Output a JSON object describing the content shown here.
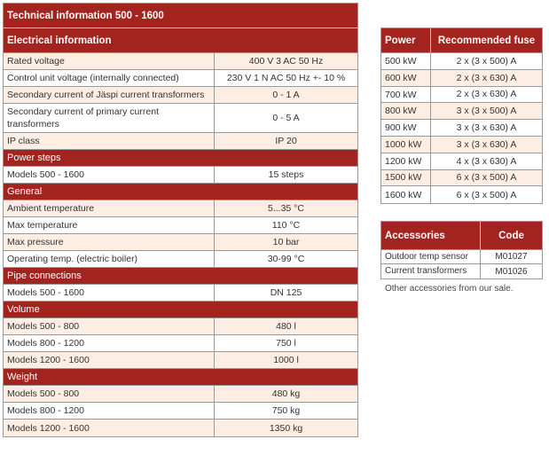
{
  "specs": {
    "title": "Technical information 500 - 1600",
    "sections": [
      {
        "heading": "Electrical information",
        "rows": [
          [
            "Rated voltage",
            "400 V 3 AC 50 Hz"
          ],
          [
            "Control unit voltage (internally connected)",
            "230 V 1 N AC 50 Hz +- 10 %"
          ],
          [
            "Secondary current of Jäspi current transformers",
            "0 - 1 A"
          ],
          [
            "Secondary current of primary current transformers",
            "0 - 5 A"
          ],
          [
            "IP class",
            "IP 20"
          ]
        ]
      },
      {
        "heading": "Power steps",
        "rows": [
          [
            "Models 500 - 1600",
            "15 steps"
          ]
        ]
      },
      {
        "heading": "General",
        "rows": [
          [
            "Ambient temperature",
            "5...35 °C"
          ],
          [
            "Max temperature",
            "110 °C"
          ],
          [
            "Max pressure",
            "10 bar"
          ],
          [
            "Operating temp. (electric boiler)",
            "30-99 °C"
          ]
        ]
      },
      {
        "heading": "Pipe connections",
        "rows": [
          [
            "Models 500 - 1600",
            "DN 125"
          ]
        ]
      },
      {
        "heading": "Volume",
        "rows": [
          [
            "Models 500 - 800",
            "480 l"
          ],
          [
            "Models 800 - 1200",
            "750 l"
          ],
          [
            "Models 1200 - 1600",
            "1000 l"
          ]
        ]
      },
      {
        "heading": "Weight",
        "rows": [
          [
            "Models 500 - 800",
            "480 kg"
          ],
          [
            "Models 800 - 1200",
            "750 kg"
          ],
          [
            "Models 1200 - 1600",
            "1350 kg"
          ]
        ]
      }
    ]
  },
  "fuses": {
    "headers": [
      "Power",
      "Recommended fuse"
    ],
    "rows": [
      [
        "500 kW",
        "2 x (3 x 500) A"
      ],
      [
        "600 kW",
        "2 x (3 x 630) A"
      ],
      [
        "700 kW",
        "2 x (3 x 630) A"
      ],
      [
        "800 kW",
        "3 x (3 x 500) A"
      ],
      [
        "900 kW",
        "3 x (3 x 630) A"
      ],
      [
        "1000 kW",
        "3 x (3 x 630) A"
      ],
      [
        "1200 kW",
        "4 x (3 x 630) A"
      ],
      [
        "1500 kW",
        "6 x (3 x 500) A"
      ],
      [
        "1600 kW",
        "6 x (3 x 500) A"
      ]
    ]
  },
  "accessories": {
    "headers": [
      "Accessories",
      "Code"
    ],
    "rows": [
      [
        "Outdoor temp sensor",
        "M01027"
      ],
      [
        "Current transformers",
        "M01026"
      ]
    ],
    "note": "Other accessories from our sale."
  }
}
